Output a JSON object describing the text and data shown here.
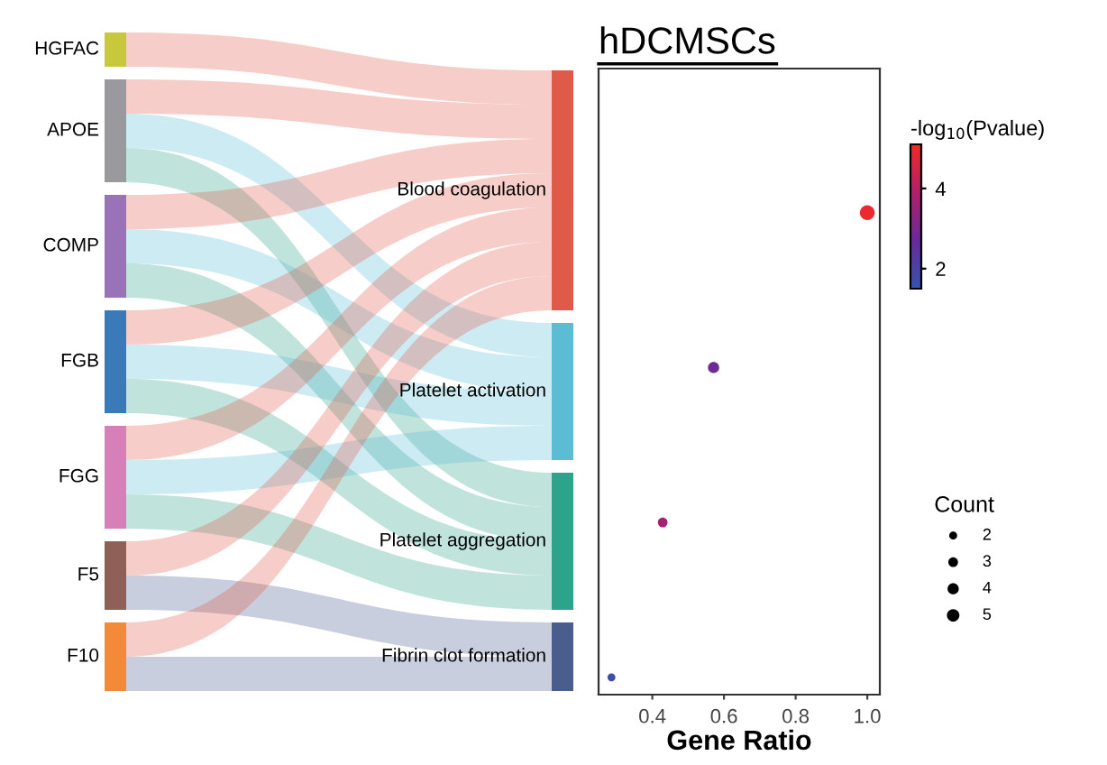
{
  "chart_data": [
    {
      "type": "other",
      "categories": [
        "HGFAC",
        "APOE",
        "COMP",
        "FGB",
        "FGG",
        "F5",
        "F10"
      ],
      "colors": [
        "#c8c83c",
        "#9a9a9e",
        "#9a72b8",
        "#3a7ab8",
        "#d77fb8",
        "#8e6058",
        "#f38a3a"
      ],
      "y_categories": [
        "Blood coagulation",
        "Platelet activation",
        "Platelet aggregation",
        "Fibrin clot formation"
      ]
    },
    {
      "type": "bubble",
      "title": "hDCMSCs",
      "xlabel": "Gene Ratio",
      "clabel": "-log$_{10}$(Pvalue)",
      "legend_title": "Count",
      "orientation": "horizontal",
      "categories": [
        null,
        null,
        null,
        null
      ],
      "values": [
        1.0,
        0.571,
        0.429,
        0.286
      ],
      "sizes": [
        7,
        4,
        3,
        2
      ],
      "size_legend": [
        2,
        3,
        4,
        5
      ],
      "cvalues": [
        5.0,
        2.8,
        3.7,
        1.7
      ],
      "clim": [
        1.5,
        5.1
      ],
      "cticks": [
        2,
        4
      ],
      "xlim": [
        0.25,
        1.035
      ],
      "xticks": [
        0.4,
        0.6,
        0.8,
        {
          "value": 1.0,
          "label": "1.0"
        }
      ],
      "tick_labels": "x",
      "grid": false
    }
  ]
}
